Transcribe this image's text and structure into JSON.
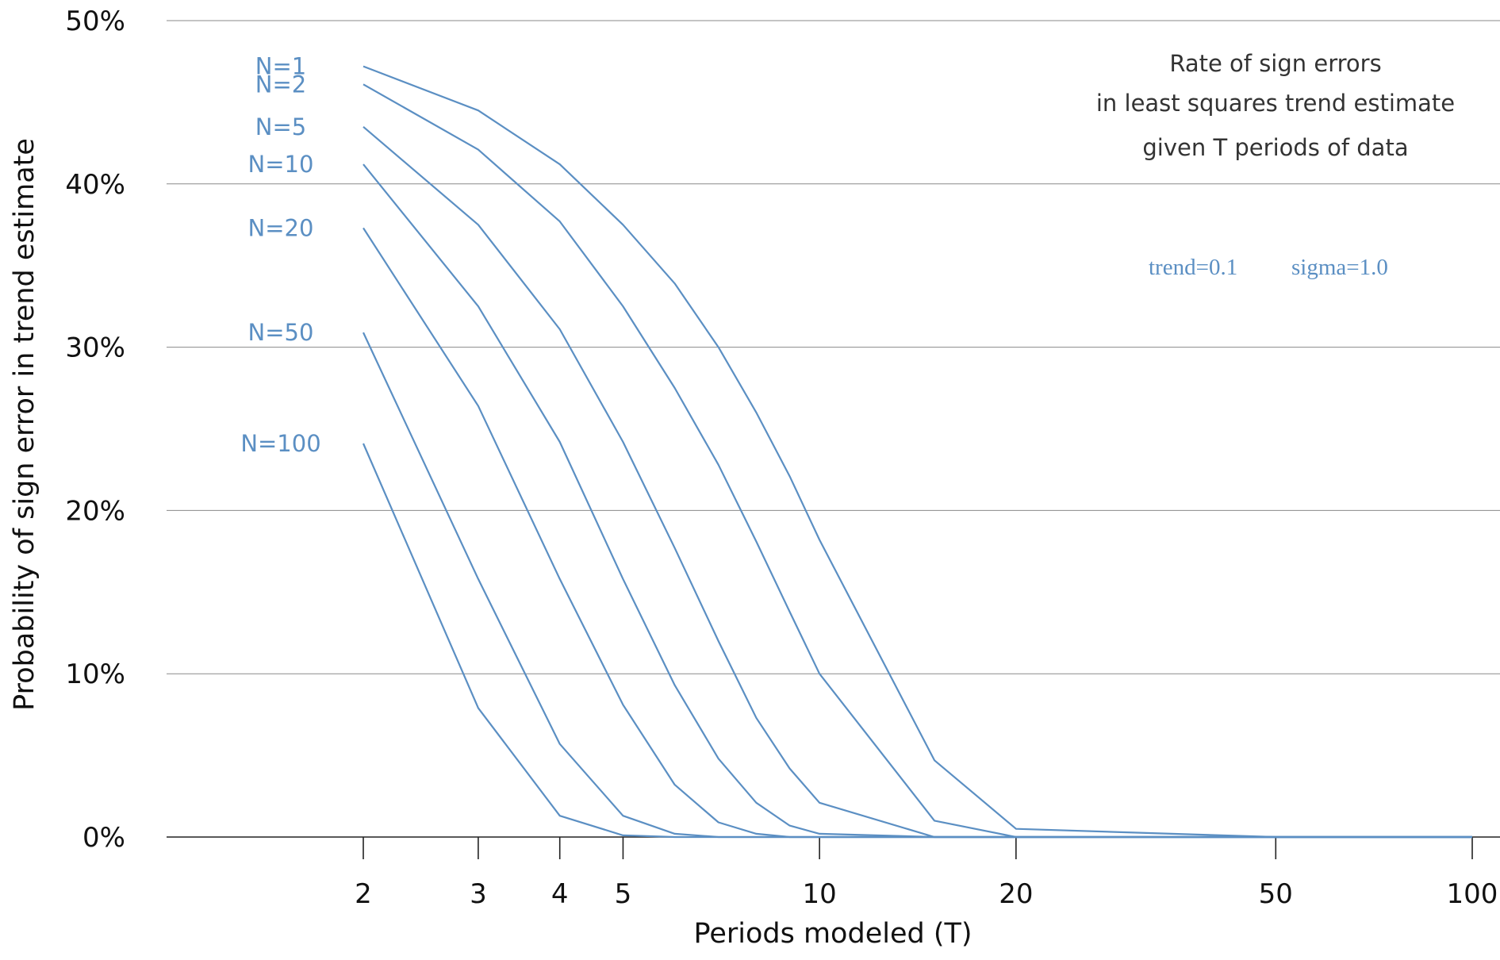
{
  "chart_data": {
    "type": "line",
    "xlabel": "Periods modeled (T)",
    "ylabel": "Probability of sign error in trend estimate",
    "x_scale": "log",
    "xlim": [
      1,
      100
    ],
    "ylim": [
      0,
      50
    ],
    "x_ticks": [
      2,
      3,
      4,
      5,
      10,
      20,
      50,
      100
    ],
    "y_ticks": [
      0,
      10,
      20,
      30,
      40,
      50
    ],
    "y_tick_labels": [
      "0%",
      "10%",
      "20%",
      "30%",
      "40%",
      "50%"
    ],
    "grid": "horizontal",
    "line_color": "#5b8fc3",
    "annotation": [
      "Rate of sign errors",
      "in least squares trend estimate",
      "given T periods of data"
    ],
    "params": [
      "trend=0.1",
      "sigma=1.0"
    ],
    "series": [
      {
        "name": "N=1",
        "x": [
          2,
          3,
          4,
          5,
          6,
          7,
          8,
          9,
          10,
          15,
          20,
          50,
          100
        ],
        "y": [
          47.2,
          44.5,
          41.2,
          37.5,
          33.9,
          30.0,
          26.0,
          22.1,
          18.2,
          4.7,
          0.5,
          0.0,
          0.0
        ]
      },
      {
        "name": "N=2",
        "x": [
          2,
          3,
          4,
          5,
          6,
          7,
          8,
          9,
          10,
          15,
          20,
          50,
          100
        ],
        "y": [
          46.1,
          42.1,
          37.7,
          32.5,
          27.5,
          22.8,
          18.1,
          13.8,
          10.0,
          1.0,
          0.0,
          0.0,
          0.0
        ]
      },
      {
        "name": "N=5",
        "x": [
          2,
          3,
          4,
          5,
          6,
          7,
          8,
          9,
          10,
          15,
          20,
          50,
          100
        ],
        "y": [
          43.5,
          37.5,
          31.1,
          24.2,
          17.7,
          12.0,
          7.3,
          4.2,
          2.1,
          0.0,
          0.0,
          0.0,
          0.0
        ]
      },
      {
        "name": "N=10",
        "x": [
          2,
          3,
          4,
          5,
          6,
          7,
          8,
          9,
          10,
          15,
          20,
          50,
          100
        ],
        "y": [
          41.2,
          32.5,
          24.2,
          15.8,
          9.3,
          4.8,
          2.1,
          0.7,
          0.2,
          0.0,
          0.0,
          0.0,
          0.0
        ]
      },
      {
        "name": "N=20",
        "x": [
          2,
          3,
          4,
          5,
          6,
          7,
          8,
          9,
          10,
          15,
          20,
          50,
          100
        ],
        "y": [
          37.3,
          26.4,
          15.8,
          8.1,
          3.2,
          0.9,
          0.2,
          0.0,
          0.0,
          0.0,
          0.0,
          0.0,
          0.0
        ]
      },
      {
        "name": "N=50",
        "x": [
          2,
          3,
          4,
          5,
          6,
          7,
          8,
          9,
          10,
          15,
          20,
          50,
          100
        ],
        "y": [
          30.9,
          15.8,
          5.7,
          1.3,
          0.2,
          0.0,
          0.0,
          0.0,
          0.0,
          0.0,
          0.0,
          0.0,
          0.0
        ]
      },
      {
        "name": "N=100",
        "x": [
          2,
          3,
          4,
          5,
          6,
          7,
          8,
          9,
          10,
          15,
          20,
          50,
          100
        ],
        "y": [
          24.1,
          7.9,
          1.3,
          0.1,
          0.0,
          0.0,
          0.0,
          0.0,
          0.0,
          0.0,
          0.0,
          0.0,
          0.0
        ]
      }
    ]
  }
}
